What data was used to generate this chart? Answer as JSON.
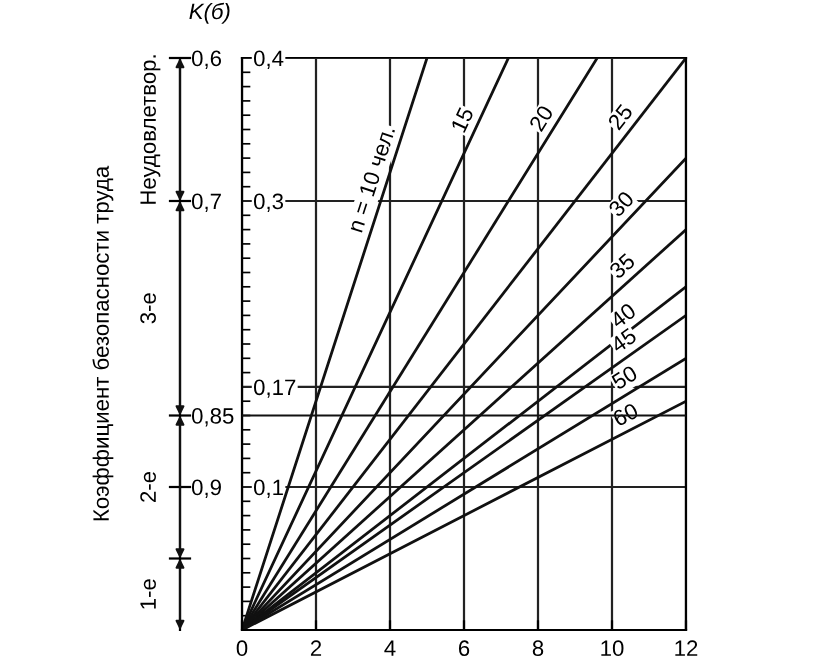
{
  "chart_data": {
    "type": "line",
    "title": "K(б)",
    "y2label": "Коэффициент безопасности труда",
    "series": [
      {
        "name": "n = 10 чел.",
        "color": "#111111",
        "x": [
          0,
          5
        ],
        "values": [
          0,
          0.4
        ]
      },
      {
        "name": "15",
        "color": "#111111",
        "x": [
          0,
          7.2
        ],
        "values": [
          0,
          0.4
        ]
      },
      {
        "name": "20",
        "color": "#111111",
        "x": [
          0,
          9.6
        ],
        "values": [
          0,
          0.4
        ]
      },
      {
        "name": "25",
        "color": "#111111",
        "x": [
          0,
          12
        ],
        "values": [
          0,
          0.4
        ]
      },
      {
        "name": "30",
        "color": "#111111",
        "x": [
          0,
          12
        ],
        "values": [
          0,
          0.33
        ]
      },
      {
        "name": "35",
        "color": "#111111",
        "x": [
          0,
          12
        ],
        "values": [
          0,
          0.28
        ]
      },
      {
        "name": "40",
        "color": "#111111",
        "x": [
          0,
          12
        ],
        "values": [
          0,
          0.24
        ]
      },
      {
        "name": "45",
        "color": "#111111",
        "x": [
          0,
          12
        ],
        "values": [
          0,
          0.22
        ]
      },
      {
        "name": "50",
        "color": "#111111",
        "x": [
          0,
          12
        ],
        "values": [
          0,
          0.19
        ]
      },
      {
        "name": "60",
        "color": "#111111",
        "x": [
          0,
          12
        ],
        "values": [
          0,
          0.16
        ]
      }
    ],
    "xlim": [
      0,
      12
    ],
    "xticks": [
      0,
      2,
      4,
      6,
      8,
      10,
      12
    ],
    "ylim": [
      0,
      0.4
    ],
    "yticks": [
      {
        "value": 0.1,
        "label": "0,1"
      },
      {
        "value": 0.17,
        "label": "0,17"
      },
      {
        "value": 0.3,
        "label": "0,3"
      },
      {
        "value": 0.4,
        "label": "0,4"
      }
    ],
    "y2lim": [
      1.0,
      0.6
    ],
    "y2ticks": [
      {
        "value": 0.6,
        "label": "0,6"
      },
      {
        "value": 0.7,
        "label": "0,7"
      },
      {
        "value": 0.85,
        "label": "0,85"
      },
      {
        "value": 0.9,
        "label": "0,9"
      },
      {
        "value": 0.95,
        "label": null
      }
    ],
    "annotations": [
      "Неудовлетвор.",
      "3-е",
      "2-е",
      "1-е"
    ],
    "ref_lines": [
      {
        "axis": "y2",
        "value": 0.85,
        "label": null,
        "color": "#111111"
      }
    ],
    "grid": true,
    "line_style": "solid",
    "legend": false
  }
}
